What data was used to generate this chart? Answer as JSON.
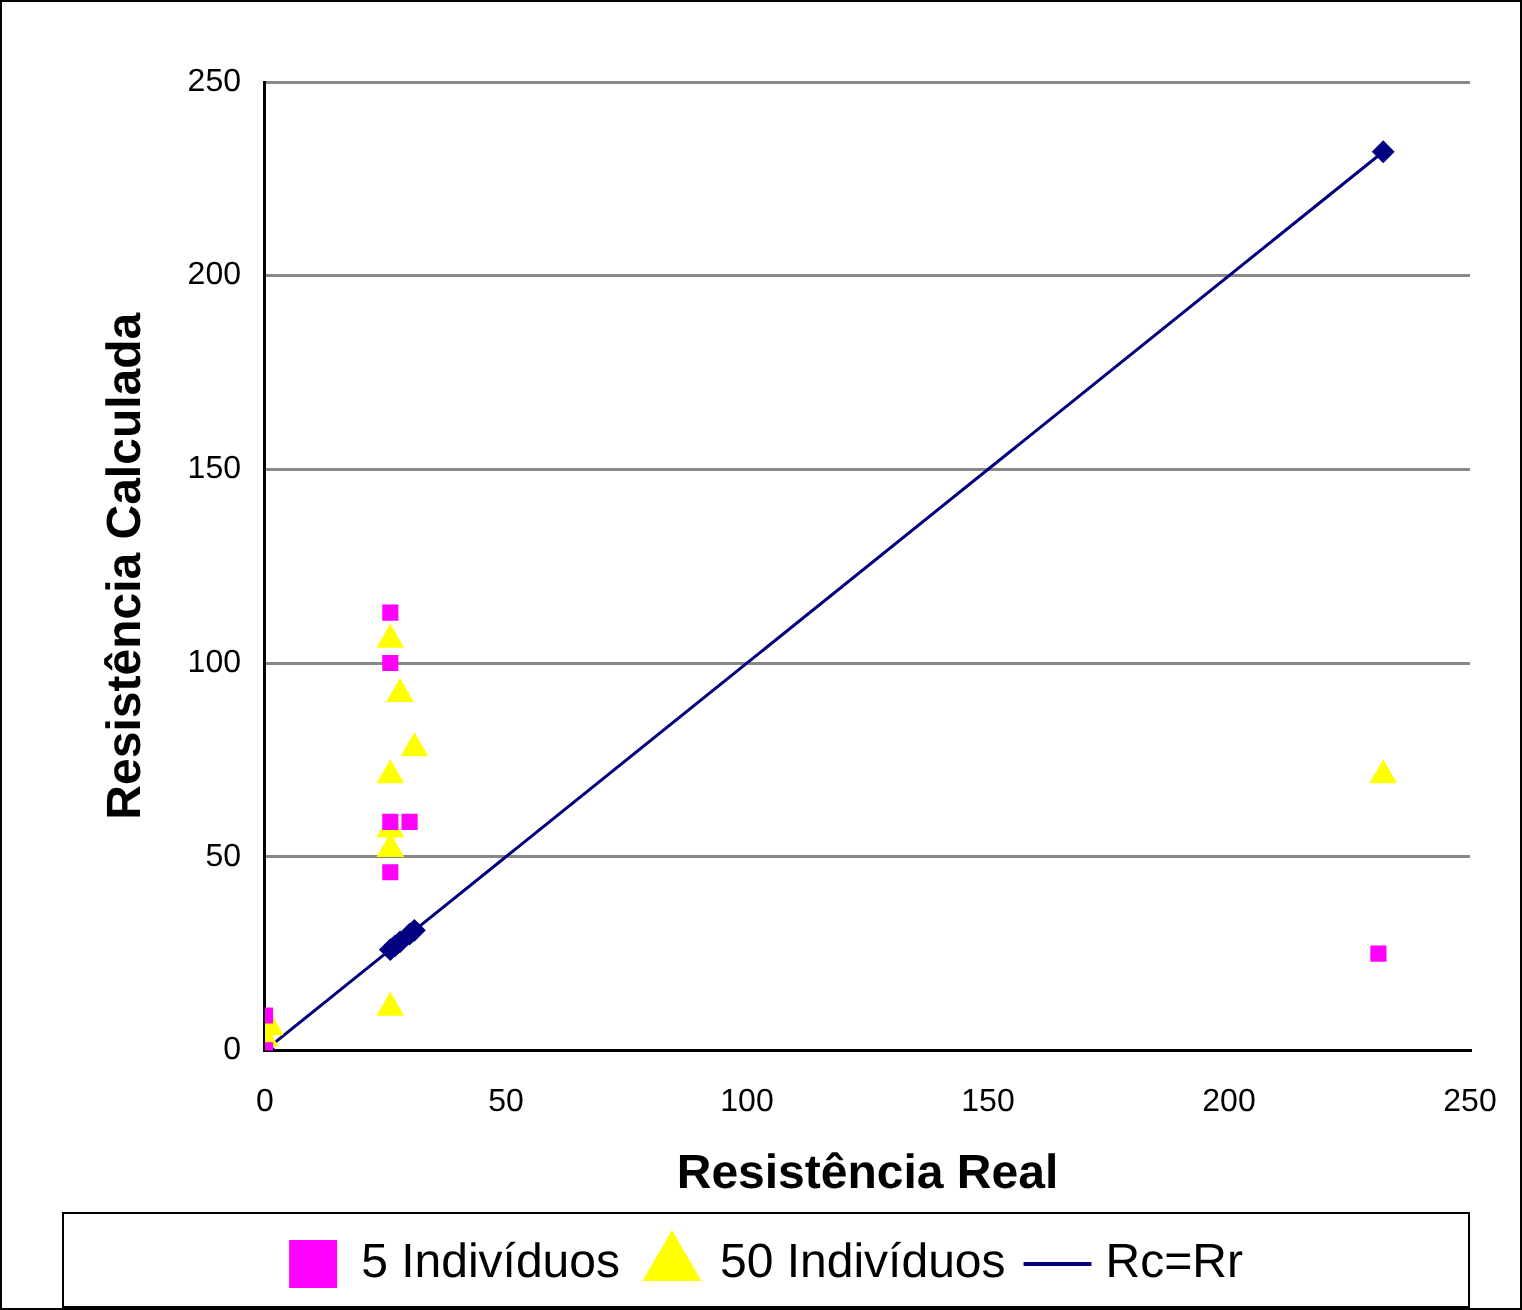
{
  "chart_data": {
    "type": "scatter",
    "xlabel": "Resistência Real",
    "ylabel": "Resistência Calculada",
    "xlim": [
      0,
      250
    ],
    "xticks": [
      0,
      50,
      100,
      150,
      200,
      250
    ],
    "ylim": [
      0,
      250
    ],
    "yticks": [
      0,
      50,
      100,
      150,
      200,
      250
    ],
    "grid": "y",
    "legend": "bottom",
    "series": [
      {
        "name": "5 Indivíduos",
        "type": "scatter",
        "marker": "square",
        "color": "#ff00ff",
        "x": [
          26,
          26,
          26,
          30,
          26,
          0,
          0,
          231
        ],
        "values": [
          113,
          100,
          59,
          59,
          46,
          9,
          0,
          25
        ]
      },
      {
        "name": "50 Indivíduos",
        "type": "scatter",
        "marker": "triangle",
        "color": "#ffff00",
        "x": [
          26,
          28,
          31,
          26,
          26,
          26,
          26,
          0,
          1,
          232
        ],
        "values": [
          106,
          92,
          78,
          71,
          57,
          52,
          11,
          3,
          6,
          71
        ]
      },
      {
        "name": "Rc=Rr",
        "type": "line",
        "marker": "diamond",
        "line_style": "solid",
        "color": "#000080",
        "x": [
          0,
          26,
          27,
          28,
          30,
          31,
          232
        ],
        "values": [
          0,
          26,
          27,
          28,
          30,
          31,
          232
        ]
      }
    ]
  }
}
